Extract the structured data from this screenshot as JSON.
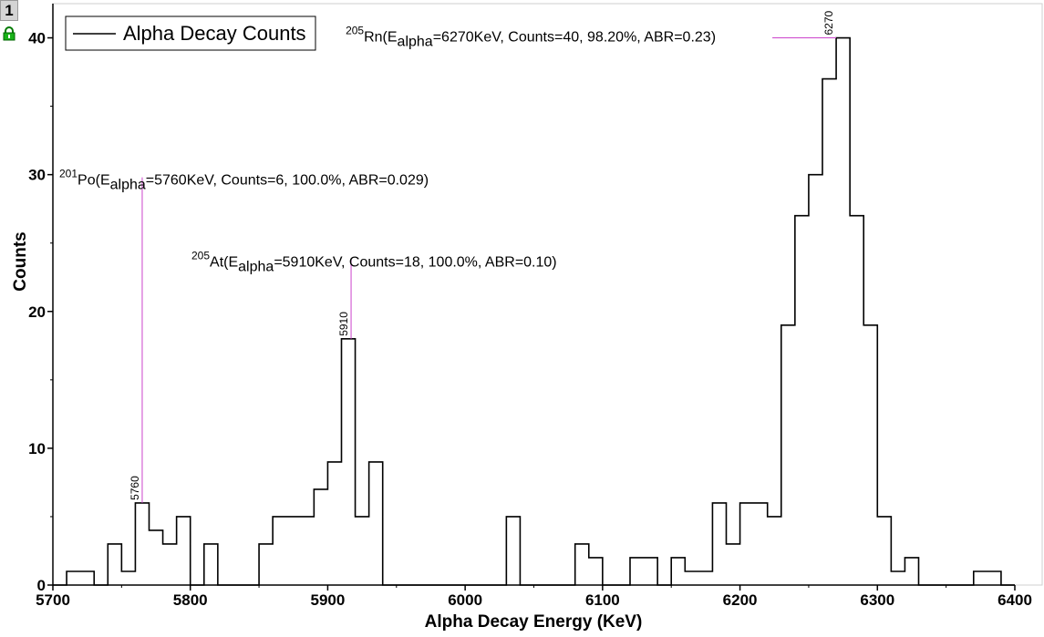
{
  "layer_badge": "1",
  "chart_data": {
    "type": "histogram",
    "xlabel": "Alpha Decay Energy (KeV)",
    "ylabel": "Counts",
    "xlim": [
      5700,
      6400
    ],
    "ylim": [
      0,
      42.5
    ],
    "x_ticks": [
      5700,
      5800,
      5900,
      6000,
      6100,
      6200,
      6300,
      6400
    ],
    "y_ticks": [
      0,
      10,
      20,
      30,
      40
    ],
    "bin_width": 10,
    "legend": {
      "position": "top-left",
      "label": "Alpha Decay Counts"
    },
    "colors": {
      "line": "#000000",
      "marker": "#cc44cc",
      "background": "#ffffff"
    },
    "series": [
      {
        "name": "Alpha Decay Counts",
        "bins": [
          [
            5710,
            1
          ],
          [
            5720,
            1
          ],
          [
            5740,
            3
          ],
          [
            5750,
            1
          ],
          [
            5760,
            6
          ],
          [
            5770,
            4
          ],
          [
            5780,
            3
          ],
          [
            5790,
            5
          ],
          [
            5810,
            3
          ],
          [
            5850,
            3
          ],
          [
            5860,
            5
          ],
          [
            5870,
            5
          ],
          [
            5880,
            5
          ],
          [
            5890,
            7
          ],
          [
            5900,
            9
          ],
          [
            5910,
            18
          ],
          [
            5920,
            5
          ],
          [
            5930,
            9
          ],
          [
            6030,
            5
          ],
          [
            6080,
            3
          ],
          [
            6090,
            2
          ],
          [
            6120,
            2
          ],
          [
            6130,
            2
          ],
          [
            6150,
            2
          ],
          [
            6160,
            1
          ],
          [
            6170,
            1
          ],
          [
            6180,
            6
          ],
          [
            6190,
            3
          ],
          [
            6200,
            6
          ],
          [
            6210,
            6
          ],
          [
            6220,
            5
          ],
          [
            6230,
            19
          ],
          [
            6240,
            27
          ],
          [
            6250,
            30
          ],
          [
            6260,
            37
          ],
          [
            6270,
            40
          ],
          [
            6280,
            27
          ],
          [
            6290,
            19
          ],
          [
            6300,
            5
          ],
          [
            6310,
            1
          ],
          [
            6320,
            2
          ],
          [
            6370,
            1
          ],
          [
            6380,
            1
          ]
        ]
      }
    ],
    "peaks": [
      {
        "tag": "5760",
        "energy": 5765,
        "counts": 6,
        "label_y": 29,
        "iso": "201",
        "el": "Po",
        "pre": "(E",
        "sub": "alpha",
        "post": "=5760KeV, Counts=6, 100.0%, ABR=0.029)"
      },
      {
        "tag": "5910",
        "energy": 5917,
        "counts": 18,
        "label_y": 23,
        "iso": "205",
        "el": "At",
        "pre": "(E",
        "sub": "alpha",
        "post": "=5910KeV, Counts=18, 100.0%, ABR=0.10)"
      },
      {
        "tag": "6270",
        "energy": 6270,
        "counts": 40,
        "label_y": 40,
        "iso": "205",
        "el": "Rn",
        "pre": "(E",
        "sub": "alpha",
        "post": "=6270KeV, Counts=40, 98.20%, ABR=0.23)"
      }
    ]
  }
}
